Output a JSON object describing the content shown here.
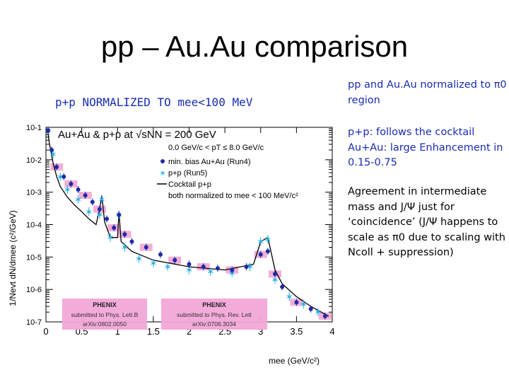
{
  "slide": {
    "title": "pp – Au.Au comparison",
    "subtitle": "p+p NORMALIZED TO mee<100 MeV",
    "notes": [
      "pp and Au.Au normalized to π0 region",
      "p+p: follows the cocktail Au+Au: large Enhancement in 0.15-0.75",
      "Agreement in intermediate mass and J/Ψ just for ‘coincidence’ (J/Ψ happens to scale as π0 due to scaling with Ncoll + suppression)"
    ],
    "colors": {
      "title_text": "#000000",
      "subtitle_text": "#1a2bb0",
      "note_blue": "#1a2bb0"
    }
  },
  "chart_data": {
    "type": "scatter",
    "title": "Au+Au & p+p at √sNN = 200 GeV",
    "xlabel": "mee (GeV/c²)",
    "ylabel": "1/Nevt dN/dmee (c²/GeV)",
    "xlim": [
      0,
      4
    ],
    "ylim": [
      1e-07,
      0.1
    ],
    "y_scale": "log",
    "x_ticks": [
      "0",
      "0.5",
      "1",
      "1.5",
      "2",
      "2.5",
      "3",
      "3.5",
      "4"
    ],
    "y_ticks": [
      "10-1",
      "10-2",
      "10-3",
      "10-4",
      "10-5",
      "10-6",
      "10-7"
    ],
    "legend": {
      "placement": "top-right",
      "lines": [
        "0.0 GeV/c < pT ≤ 8.0 GeV/c"
      ],
      "entries": [
        {
          "label": "min. bias Au+Au (Run4)",
          "color": "#1c2aa8",
          "marker": "filled-circle"
        },
        {
          "label": "p+p (Run5)",
          "color": "#27b0e8",
          "marker": "star"
        },
        {
          "label": "Cocktail p+p",
          "color": "#000000",
          "marker": "line"
        }
      ],
      "footer": "both normalized to mee < 100 MeV/c²"
    },
    "annotations": [
      {
        "text": "submitted to Phys. Lett.B",
        "sub": "arXiv:0802.0050",
        "logo": "PHENIX"
      },
      {
        "text": "submitted to Phys. Rev. Lett",
        "sub": "arXiv:0706.3034",
        "logo": "PHENIX"
      }
    ],
    "series": [
      {
        "name": "min. bias Au+Au (Run4)",
        "color": "#1c2aa8",
        "x": [
          0.03,
          0.08,
          0.15,
          0.25,
          0.35,
          0.45,
          0.55,
          0.65,
          0.75,
          0.85,
          0.95,
          1.02,
          1.1,
          1.2,
          1.4,
          1.6,
          1.8,
          2.0,
          2.2,
          2.4,
          2.6,
          2.8,
          3.0,
          3.1,
          3.2,
          3.3,
          3.5,
          3.7,
          3.9
        ],
        "y": [
          0.08,
          0.02,
          0.006,
          0.003,
          0.0018,
          0.0012,
          0.0008,
          0.0005,
          0.0003,
          0.00015,
          8e-05,
          0.0002,
          5e-05,
          3e-05,
          2e-05,
          1.2e-05,
          8e-06,
          6e-06,
          5e-06,
          4.5e-06,
          4e-06,
          5e-06,
          1.2e-05,
          1.5e-05,
          3e-06,
          1.2e-06,
          4e-07,
          2.5e-07,
          1.5e-07
        ]
      },
      {
        "name": "p+p (Run5)",
        "color": "#27b0e8",
        "x": [
          0.03,
          0.1,
          0.2,
          0.3,
          0.45,
          0.6,
          0.75,
          0.78,
          0.9,
          1.02,
          1.1,
          1.3,
          1.5,
          1.7,
          2.0,
          2.3,
          2.6,
          2.85,
          3.0,
          3.1,
          3.2,
          3.4,
          3.6,
          3.8
        ],
        "y": [
          0.08,
          0.015,
          0.003,
          0.0012,
          0.0006,
          0.00025,
          0.0002,
          0.0006,
          4e-05,
          0.0002,
          2e-05,
          9e-06,
          6.5e-06,
          5e-06,
          4e-06,
          3.5e-06,
          3.2e-06,
          5e-06,
          3e-05,
          3.5e-05,
          2e-06,
          6e-07,
          3.5e-07,
          2e-07
        ]
      },
      {
        "name": "Cocktail p+p",
        "color": "#000000",
        "x": [
          0.02,
          0.05,
          0.1,
          0.15,
          0.2,
          0.3,
          0.4,
          0.5,
          0.6,
          0.7,
          0.75,
          0.78,
          0.82,
          0.9,
          1.0,
          1.02,
          1.05,
          1.2,
          1.5,
          2.0,
          2.5,
          2.9,
          3.0,
          3.1,
          3.2,
          3.3,
          3.5,
          3.7,
          3.95
        ],
        "y": [
          0.09,
          0.03,
          0.008,
          0.003,
          0.0015,
          0.0007,
          0.0004,
          0.00025,
          0.00015,
          0.0001,
          0.0003,
          0.0008,
          0.00012,
          4e-05,
          4e-05,
          0.00025,
          3e-05,
          1.5e-05,
          8e-06,
          5e-06,
          4e-06,
          6e-06,
          3e-05,
          4e-05,
          4e-06,
          1.5e-06,
          6e-07,
          3e-07,
          1.5e-07
        ]
      }
    ]
  }
}
